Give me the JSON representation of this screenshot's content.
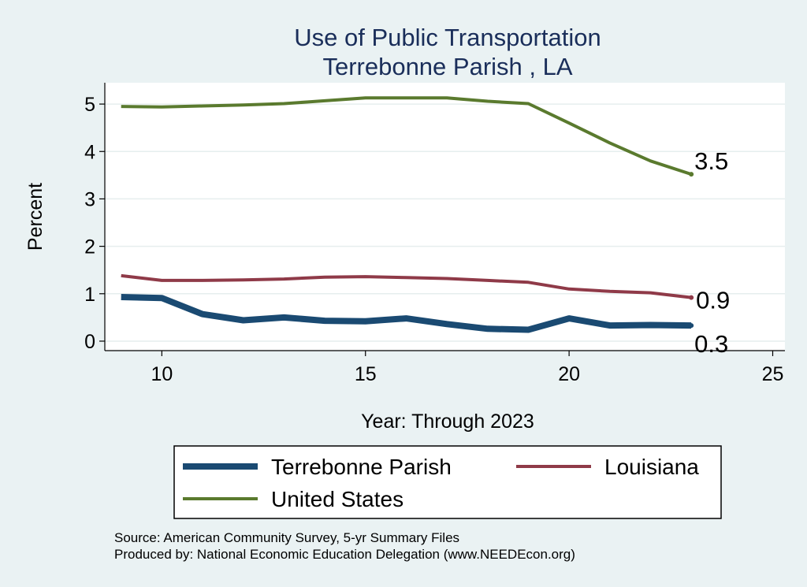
{
  "chart_data": {
    "type": "line",
    "title": "Use of Public Transportation",
    "subtitle": "Terrebonne Parish , LA",
    "xlabel": "Year: Through 2023",
    "ylabel": "Percent",
    "xlim": [
      8.6,
      25.3
    ],
    "ylim": [
      -0.2,
      5.45
    ],
    "xticks": [
      10,
      15,
      20,
      25
    ],
    "yticks": [
      0,
      1,
      2,
      3,
      4,
      5
    ],
    "grid": true,
    "legend_position": "bottom",
    "x": [
      9,
      10,
      11,
      12,
      13,
      14,
      15,
      16,
      17,
      18,
      19,
      20,
      21,
      22,
      23
    ],
    "series": [
      {
        "name": "Terrebonne Parish",
        "color": "#1a4a72",
        "width": 8,
        "values": [
          0.93,
          0.91,
          0.57,
          0.44,
          0.5,
          0.43,
          0.42,
          0.48,
          0.36,
          0.26,
          0.24,
          0.48,
          0.33,
          0.34,
          0.33
        ],
        "end_label": "0.3"
      },
      {
        "name": "Louisiana",
        "color": "#8f3a48",
        "width": 4,
        "values": [
          1.38,
          1.28,
          1.28,
          1.29,
          1.31,
          1.35,
          1.36,
          1.34,
          1.32,
          1.28,
          1.24,
          1.1,
          1.05,
          1.02,
          0.92
        ],
        "end_label": "0.9"
      },
      {
        "name": "United States",
        "color": "#5a7a2e",
        "width": 4,
        "values": [
          4.95,
          4.94,
          4.96,
          4.98,
          5.01,
          5.07,
          5.13,
          5.13,
          5.13,
          5.06,
          5.01,
          4.6,
          4.18,
          3.8,
          3.52
        ],
        "end_label": "3.5"
      }
    ],
    "notes": [
      "Source: American Community Survey, 5-yr Summary Files",
      "Produced by: National Economic Education Delegation (www.NEEDEcon.org)"
    ]
  }
}
